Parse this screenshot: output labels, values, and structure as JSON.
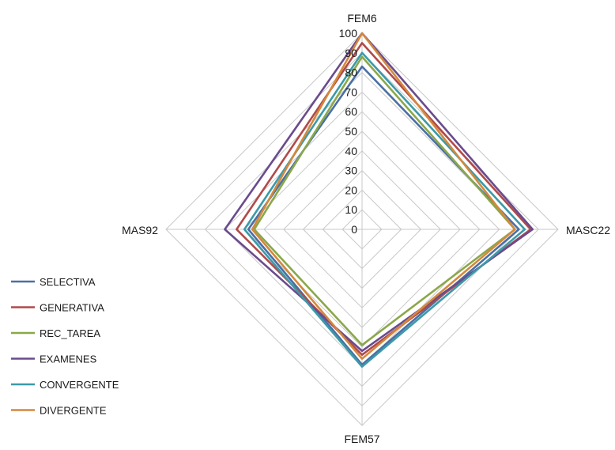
{
  "chart_data": {
    "type": "radar",
    "title": "",
    "axes": [
      "FEM6",
      "MASC22",
      "FEM57",
      "MAS92"
    ],
    "rmax": 100,
    "ticks": [
      0,
      10,
      20,
      30,
      40,
      50,
      60,
      70,
      80,
      90,
      100
    ],
    "grid": true,
    "legend_position": "left",
    "series": [
      {
        "name": "SELECTIVA",
        "color": "#4a6fa5",
        "values": [
          83,
          80,
          69,
          58
        ]
      },
      {
        "name": "GENERATIVA",
        "color": "#b04a4a",
        "values": [
          95,
          86,
          64,
          64
        ]
      },
      {
        "name": "REC_TAREA",
        "color": "#8aa84a",
        "values": [
          88,
          78,
          59,
          55
        ]
      },
      {
        "name": "EXAMENES",
        "color": "#6a4b8c",
        "values": [
          100,
          87,
          62,
          70
        ]
      },
      {
        "name": "CONVERGENTE",
        "color": "#3c9aa8",
        "values": [
          90,
          83,
          70,
          60
        ]
      },
      {
        "name": "DIVERGENTE",
        "color": "#d4883c",
        "values": [
          100,
          78,
          66,
          56
        ]
      }
    ]
  }
}
